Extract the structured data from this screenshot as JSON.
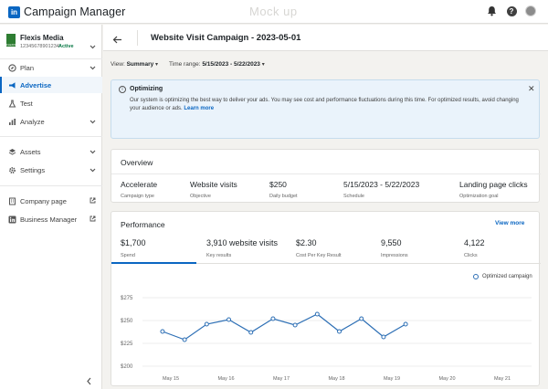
{
  "topbar": {
    "logo": "in",
    "app_name": "Campaign Manager",
    "watermark": "Mock up",
    "icons": [
      "bell-icon",
      "help-icon",
      "avatar"
    ]
  },
  "account": {
    "name": "Flexis Media",
    "id": "12345678901234",
    "status": "Active",
    "logo_text": "FLEXIS"
  },
  "sidebar": {
    "items": [
      {
        "label": "Plan",
        "icon": "compass-icon",
        "trail": "chevron"
      },
      {
        "label": "Advertise",
        "icon": "megaphone-icon",
        "active": true
      },
      {
        "label": "Test",
        "icon": "flask-icon"
      },
      {
        "label": "Analyze",
        "icon": "bar-chart-icon",
        "trail": "chevron"
      },
      {
        "label": "Assets",
        "icon": "layers-icon",
        "trail": "chevron"
      },
      {
        "label": "Settings",
        "icon": "gear-icon",
        "trail": "chevron"
      },
      {
        "label": "Company page",
        "icon": "building-icon",
        "trail": "external"
      },
      {
        "label": "Business Manager",
        "icon": "linkedin-icon",
        "trail": "external"
      }
    ]
  },
  "header": {
    "title": "Website Visit Campaign - 2023-05-01"
  },
  "filters": {
    "view_label": "View:",
    "view_value": "Summary",
    "range_label": "Time range:",
    "range_value": "5/15/2023 - 5/22/2023"
  },
  "alert": {
    "title": "Optimizing",
    "body": "Our system is optimizing the best way to  deliver your ads. You may see cost and performance fluctuations during this time. For optimized results, avoid changing your audience or ads.",
    "link": "Learn more",
    "close": "✕"
  },
  "overview": {
    "title": "Overview",
    "items": [
      {
        "value": "Accelerate",
        "label": "Campaign type"
      },
      {
        "value": "Website visits",
        "label": "Objective"
      },
      {
        "value": "$250",
        "label": "Daily budget"
      },
      {
        "value": "5/15/2023 - 5/22/2023",
        "label": "Schedule"
      },
      {
        "value": "Landing page clicks",
        "label": "Optimization goal"
      }
    ]
  },
  "performance": {
    "title": "Performance",
    "view_more": "View more",
    "metrics": [
      {
        "value": "$1,700",
        "label": "Spend"
      },
      {
        "value": "3,910 website visits",
        "label": "Key results"
      },
      {
        "value": "$2.30",
        "label": "Cost Per Key Result"
      },
      {
        "value": "9,550",
        "label": "Impressions"
      },
      {
        "value": "4,122",
        "label": "Clicks"
      }
    ]
  },
  "colors": {
    "brand": "#0a66c2",
    "series": "#2d6fb5",
    "active_account": "#057642"
  },
  "chart_data": {
    "type": "line",
    "x_axis": "date",
    "ylim": [
      200,
      275
    ],
    "y_ticks": [
      "$275",
      "$250",
      "$225",
      "$200",
      "$175"
    ],
    "y_tick_values": [
      275,
      250,
      225,
      200,
      175
    ],
    "x_ticks": [
      "May 15",
      "May 16",
      "May 17",
      "May 18",
      "May 19",
      "May 20",
      "May 21"
    ],
    "x_tick_dates": [
      "2023-05-15",
      "2023-05-16",
      "2023-05-17",
      "2023-05-18",
      "2023-05-19",
      "2023-05-20",
      "2023-05-21"
    ],
    "grid": true,
    "legend_position": "top-right",
    "series": [
      {
        "name": "Optimized campaign",
        "points": [
          {
            "x": "2023-05-14 20:24",
            "y": 238
          },
          {
            "x": "2023-05-15 06:00",
            "y": 229
          },
          {
            "x": "2023-05-15 15:36",
            "y": 246
          },
          {
            "x": "2023-05-16 01:12",
            "y": 251
          },
          {
            "x": "2023-05-16 10:48",
            "y": 237
          },
          {
            "x": "2023-05-16 20:24",
            "y": 252
          },
          {
            "x": "2023-05-17 06:00",
            "y": 245
          },
          {
            "x": "2023-05-17 15:36",
            "y": 257
          },
          {
            "x": "2023-05-18 01:12",
            "y": 238
          },
          {
            "x": "2023-05-18 10:48",
            "y": 252
          },
          {
            "x": "2023-05-18 20:24",
            "y": 232
          },
          {
            "x": "2023-05-19 06:00",
            "y": 246
          }
        ]
      }
    ]
  }
}
